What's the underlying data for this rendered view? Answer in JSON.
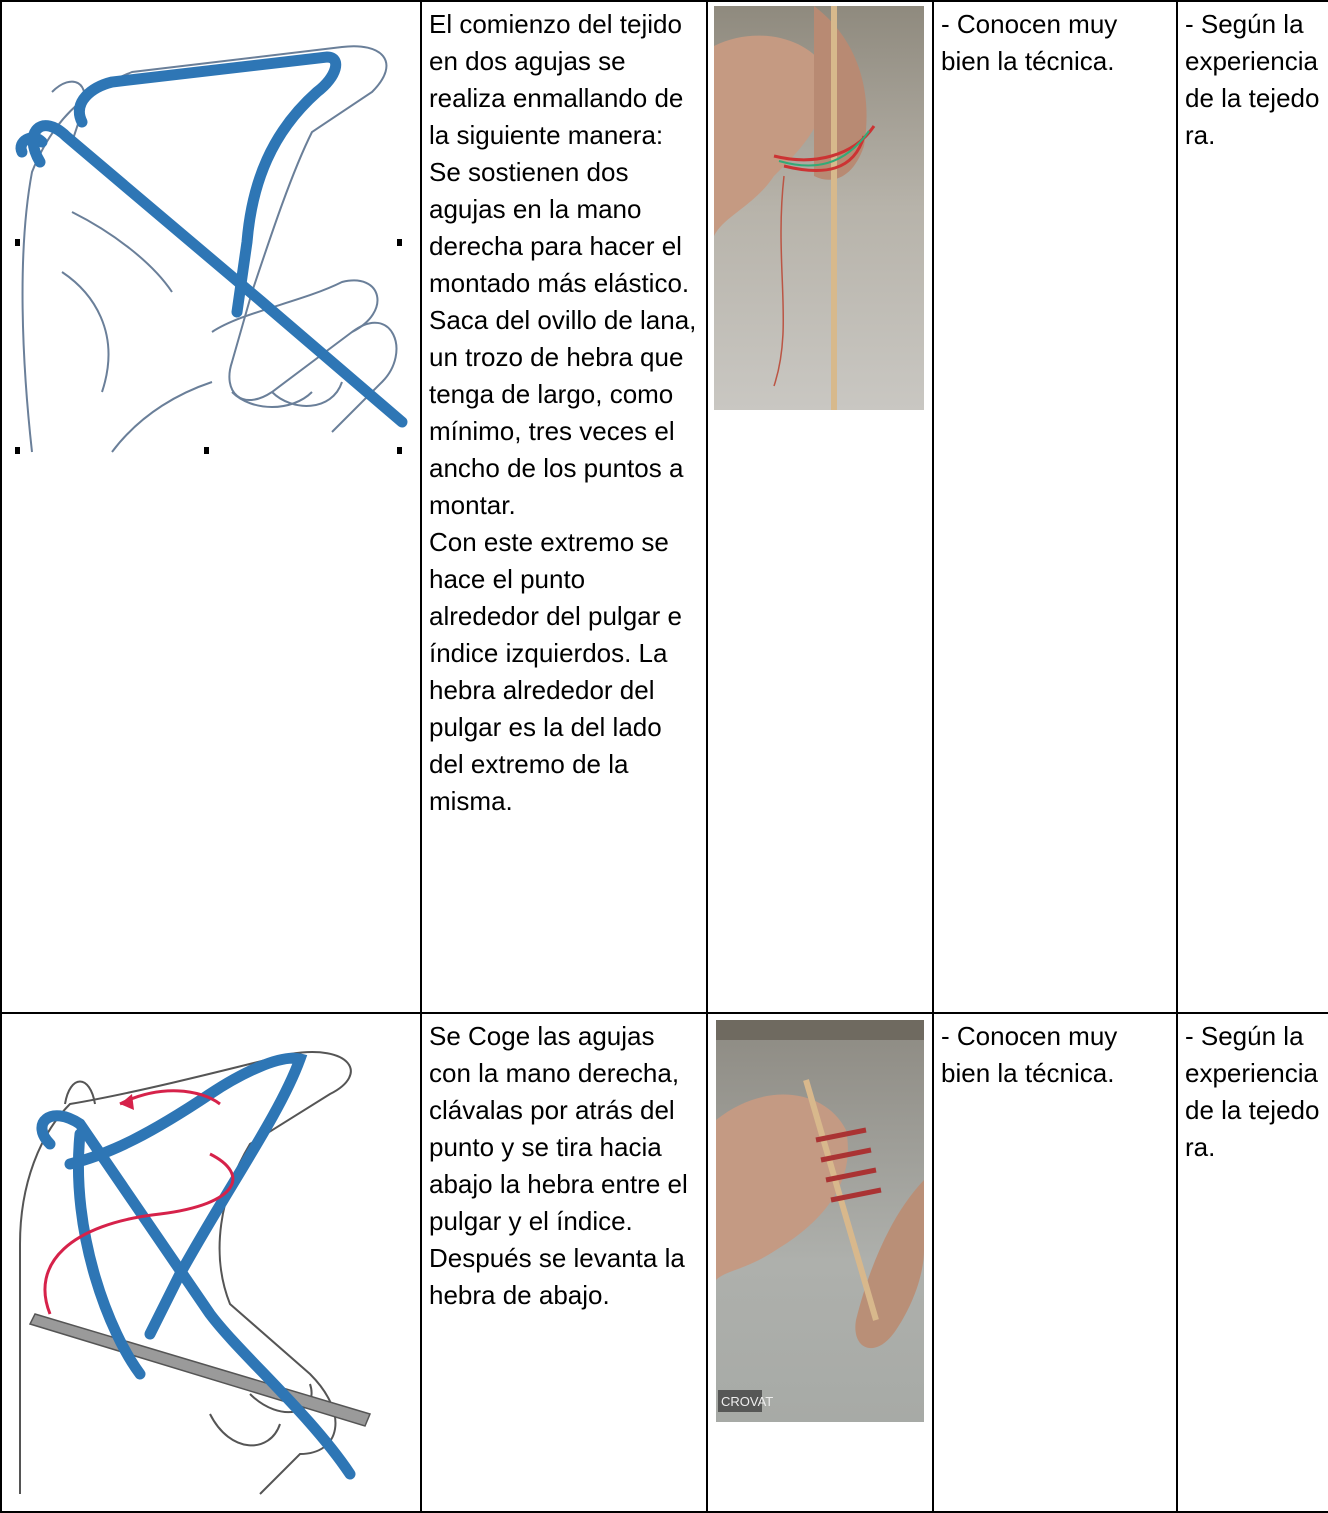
{
  "table": {
    "rows": [
      {
        "description": [
          "El comienzo del tejido en dos agujas se realiza enmallando de la siguiente manera:",
          "Se sostienen dos agujas en la mano derecha para hacer el montado más elástico.",
          "Saca del ovillo de lana, un trozo de hebra que tenga de largo, como mínimo, tres veces el ancho de los puntos a montar.",
          "Con este extremo se hace el punto alrededor del pulgar e índice izquierdos. La hebra alrededor del pulgar es la del lado del extremo de la misma."
        ],
        "knowledge": "- Conocen muy bien la técnica.",
        "criterion": "- Según la experiencia de la tejedora."
      },
      {
        "description": [
          "Se Coge las agujas con la mano derecha, clávalas por atrás del punto y se tira hacia abajo la hebra entre el pulgar y el índice.",
          "Después se levanta la hebra de abajo."
        ],
        "knowledge": "- Conocen muy bien la técnica.",
        "criterion": "- Según la experiencia de la tejedora.",
        "photo_caption": "CROVAT"
      }
    ]
  }
}
